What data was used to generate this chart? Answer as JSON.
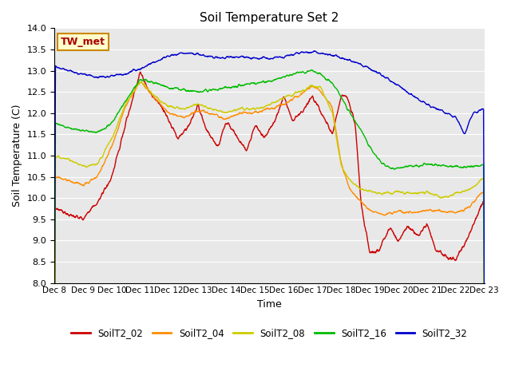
{
  "title": "Soil Temperature Set 2",
  "ylabel": "Soil Temperature (C)",
  "xlabel": "Time",
  "ylim": [
    8.0,
    14.0
  ],
  "yticks": [
    8.0,
    8.5,
    9.0,
    9.5,
    10.0,
    10.5,
    11.0,
    11.5,
    12.0,
    12.5,
    13.0,
    13.5,
    14.0
  ],
  "colors": {
    "SoilT2_02": "#cc0000",
    "SoilT2_04": "#ff8c00",
    "SoilT2_08": "#cccc00",
    "SoilT2_16": "#00bb00",
    "SoilT2_32": "#0000cc"
  },
  "fig_bg": "#ffffff",
  "plot_bg": "#e8e8e8",
  "grid_color": "#ffffff",
  "annotation_text": "TW_met",
  "annotation_color": "#aa0000",
  "annotation_bg": "#ffffcc",
  "annotation_border": "#cc8800",
  "tick_labels": [
    "Dec 8",
    "Dec 9",
    "Dec 10",
    "Dec 11",
    "Dec 12",
    "Dec 13",
    "Dec 14",
    "Dec 15",
    "Dec 16",
    "Dec 17",
    "Dec 18",
    "Dec 19",
    "Dec 20",
    "Dec 21",
    "Dec 22",
    "Dec 23"
  ]
}
